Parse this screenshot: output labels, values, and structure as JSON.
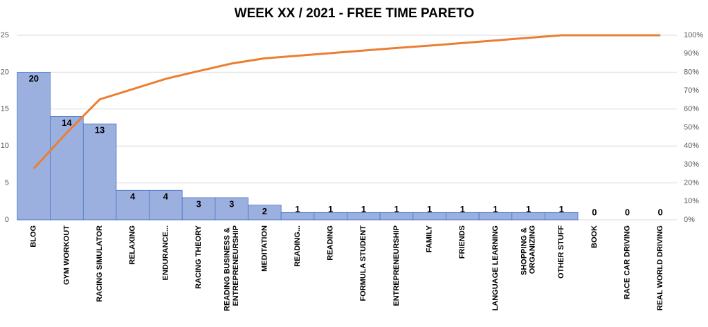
{
  "chart_data": {
    "type": "pareto",
    "title": "WEEK XX / 2021 - FREE TIME PARETO",
    "categories": [
      "BLOG",
      "GYM WORKOUT",
      "RACING SIMULATOR",
      "RELAXING",
      "ENDURANCE...",
      "RACING THEORY",
      "READING BUSINESS & ENTREPRENEURSHIP",
      "MEDITATION",
      "READING...",
      "READING",
      "FORMULA STUDENT",
      "ENTREPRENEURSHIP",
      "FAMILY",
      "FRIENDS",
      "LANGUAGE LEARNING",
      "SHOPPING & ORGANIZING",
      "OTHER STUFF",
      "BOOK",
      "RACE CAR DRIVING",
      "REAL WORLD DRIVING"
    ],
    "series": [
      {
        "color": "#9cb0e0",
        "values": [
          20,
          14,
          13,
          4,
          4,
          3,
          3,
          2,
          1,
          1,
          1,
          1,
          1,
          1,
          1,
          1,
          1,
          0,
          0,
          0
        ]
      },
      {
        "color": "#ed7d31",
        "axis": "y2",
        "values": [
          27.8,
          47.2,
          65.3,
          70.8,
          76.4,
          80.6,
          84.7,
          87.5,
          88.9,
          90.3,
          91.7,
          93.1,
          94.4,
          95.8,
          97.2,
          98.6,
          100,
          100,
          100,
          100
        ]
      }
    ],
    "ylim": [
      0,
      25
    ],
    "yticks": [
      0,
      5,
      10,
      15,
      20,
      25
    ],
    "y2lim": [
      0,
      100
    ],
    "y2ticks": [
      {
        "value": 0,
        "label": "0%"
      },
      {
        "value": 10,
        "label": "10%"
      },
      {
        "value": 20,
        "label": "20%"
      },
      {
        "value": 30,
        "label": "30%"
      },
      {
        "value": 40,
        "label": "40%"
      },
      {
        "value": 50,
        "label": "50%"
      },
      {
        "value": 60,
        "label": "60%"
      },
      {
        "value": 70,
        "label": "70%"
      },
      {
        "value": 80,
        "label": "80%"
      },
      {
        "value": 90,
        "label": "90%"
      },
      {
        "value": 100,
        "label": "100%"
      }
    ],
    "grid": true
  }
}
